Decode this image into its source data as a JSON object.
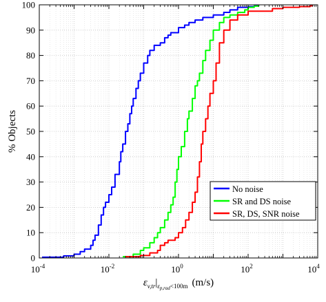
{
  "chart_data": {
    "type": "line",
    "xscale": "log",
    "xlim": [
      0.0001,
      10000
    ],
    "ylim": [
      0,
      100
    ],
    "grid": true,
    "legend_position": "lower-right",
    "ylabel": "% Objects",
    "xlabel": {
      "main": "ε",
      "main_sub": "v,tr",
      "cond": "|",
      "cond_sub": "ε",
      "cond_sub_sub": "p,rad",
      "cond_rest": "<100m",
      "unit": "(m/s)"
    },
    "x_ticks": [
      {
        "value": 0.0001,
        "base": "10",
        "exp": "-4"
      },
      {
        "value": 0.01,
        "base": "10",
        "exp": "-2"
      },
      {
        "value": 1,
        "base": "10",
        "exp": "0"
      },
      {
        "value": 100,
        "base": "10",
        "exp": "2"
      },
      {
        "value": 10000,
        "base": "10",
        "exp": "4"
      }
    ],
    "y_ticks": [
      "0",
      "10",
      "20",
      "30",
      "40",
      "50",
      "60",
      "70",
      "80",
      "90",
      "100"
    ],
    "series": [
      {
        "name": "No noise",
        "color": "#0000ff",
        "x": [
          0.00012,
          0.0005,
          0.001,
          0.0015,
          0.002,
          0.003,
          0.0035,
          0.004,
          0.005,
          0.006,
          0.007,
          0.008,
          0.01,
          0.012,
          0.015,
          0.02,
          0.022,
          0.025,
          0.03,
          0.035,
          0.04,
          0.045,
          0.05,
          0.06,
          0.07,
          0.08,
          0.1,
          0.13,
          0.15,
          0.2,
          0.3,
          0.4,
          0.5,
          0.6,
          1.0,
          1.5,
          2.0,
          3.0,
          5.0,
          10,
          20,
          30,
          50,
          100,
          150,
          200
        ],
        "y": [
          0.3,
          0.8,
          1.5,
          2.5,
          3.5,
          5,
          7,
          9,
          13,
          17,
          20,
          22,
          25,
          28,
          33,
          38,
          42,
          45,
          50,
          53,
          57,
          60,
          63,
          67,
          70,
          73,
          77,
          80,
          82,
          84,
          85,
          87,
          88,
          89,
          91,
          92,
          93,
          94,
          95,
          96,
          97,
          98,
          99,
          99.3,
          99.6,
          100
        ]
      },
      {
        "name": "SR and DS noise",
        "color": "#00ff00",
        "x": [
          0.025,
          0.05,
          0.08,
          0.1,
          0.15,
          0.2,
          0.25,
          0.3,
          0.4,
          0.5,
          0.6,
          0.7,
          0.8,
          0.9,
          1.0,
          1.2,
          1.5,
          1.8,
          2.0,
          2.5,
          3.0,
          3.5,
          4.0,
          5.0,
          6.0,
          8.0,
          10,
          15,
          20,
          30,
          50,
          80,
          100,
          150,
          200
        ],
        "y": [
          0.5,
          1.5,
          3,
          4,
          6,
          8,
          10,
          12,
          15,
          18,
          21,
          24,
          30,
          35,
          40,
          44,
          50,
          55,
          58,
          63,
          68,
          70,
          73,
          78,
          82,
          86,
          90,
          93,
          95,
          96,
          97,
          98,
          99,
          99.5,
          100
        ]
      },
      {
        "name": "SR, DS, SNR noise",
        "color": "#ff0000",
        "x": [
          0.03,
          0.08,
          0.15,
          0.25,
          0.3,
          0.4,
          0.5,
          0.8,
          1.0,
          1.3,
          1.6,
          2.0,
          2.5,
          3.0,
          3.5,
          4.0,
          4.5,
          5.0,
          6.0,
          7.0,
          8.0,
          10,
          12,
          15,
          20,
          30,
          50,
          100,
          500,
          1000,
          3000,
          6000,
          7000
        ],
        "y": [
          0.5,
          1,
          2,
          3,
          5,
          6,
          7,
          8,
          10,
          12,
          15,
          18,
          22,
          26,
          32,
          38,
          45,
          50,
          55,
          60,
          65,
          70,
          77,
          85,
          90,
          94,
          96,
          97.5,
          98.5,
          99,
          99.3,
          99.6,
          100
        ]
      }
    ]
  }
}
